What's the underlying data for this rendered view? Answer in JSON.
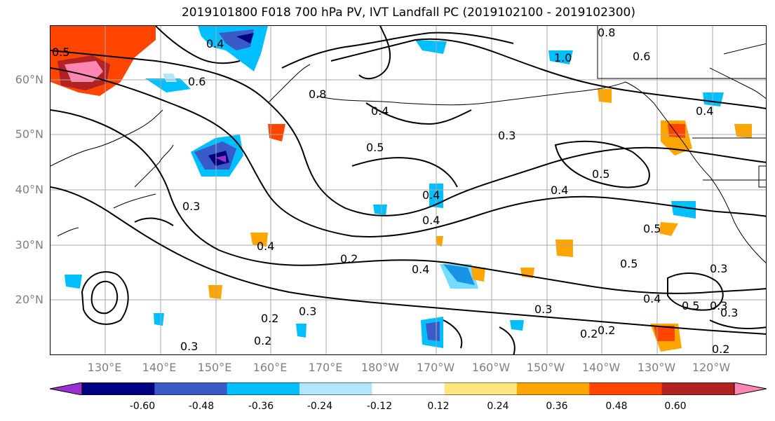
{
  "title": "2019101800 F018 700 hPa PV, IVT Landfall PC (2019102100 - 2019102300)",
  "lat_labels": [
    "60°N",
    "50°N",
    "40°N",
    "30°N",
    "20°N"
  ],
  "lon_labels": [
    "130°E",
    "140°E",
    "150°E",
    "160°E",
    "170°E",
    "180°W",
    "170°W",
    "160°W",
    "150°W",
    "140°W",
    "130°W",
    "120°W"
  ],
  "contour_labels": [
    "0.5",
    "0.4",
    "0.6",
    "0.8",
    "0.4",
    "0.5",
    "0.3",
    "0.4",
    "0.5",
    "0.4",
    "0.2",
    "0.3",
    "0.2",
    "0.4",
    "0.3",
    "0.2",
    "0.4",
    "0.3",
    "0.4",
    "0.3",
    "0.5",
    "0.5",
    "0.3",
    "0.4",
    "0.5",
    "0.2",
    "0.3",
    "1.0",
    "0.8",
    "0.6",
    "0.4",
    "0.3",
    "0.2",
    "0.2"
  ],
  "colorbar": {
    "colors": [
      "#9b30d0",
      "#000080",
      "#3a5bc7",
      "#00bfff",
      "#b3e5ff",
      "#ffffff",
      "#ffe680",
      "#ffa500",
      "#ff4500",
      "#b22222",
      "#ff85b3"
    ],
    "tick_labels": [
      "-0.60",
      "-0.48",
      "-0.36",
      "-0.24",
      "-0.12",
      "0.12",
      "0.24",
      "0.36",
      "0.48",
      "0.60"
    ]
  }
}
